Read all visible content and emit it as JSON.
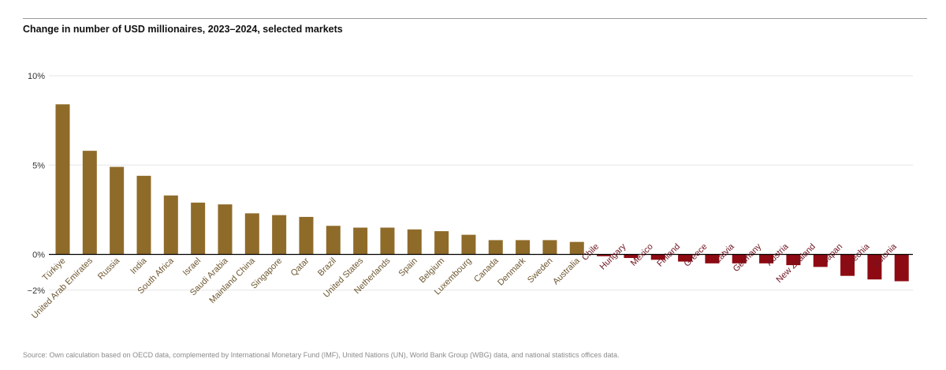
{
  "chart_data": {
    "type": "bar",
    "title": "Change in number of USD millionaires, 2023–2024, selected markets",
    "xlabel": "",
    "ylabel": "",
    "ylim": [
      -3,
      10.5
    ],
    "yticks": [
      {
        "value": 10,
        "label": "10%"
      },
      {
        "value": 5,
        "label": "5%"
      },
      {
        "value": 0,
        "label": "0%"
      },
      {
        "value": -2,
        "label": "−2%"
      }
    ],
    "grid": true,
    "legend": "none",
    "colors": {
      "positive": "#8f6b2a",
      "negative": "#8e0a12",
      "positive_label": "#6e5730",
      "negative_label": "#6e1420"
    },
    "categories": [
      "Türkiye",
      "United Arab Emirates",
      "Russia",
      "India",
      "South Africa",
      "Israel",
      "Saudi Arabia",
      "Mainland China",
      "Singapore",
      "Qatar",
      "Brazil",
      "United States",
      "Netherlands",
      "Spain",
      "Belgium",
      "Luxembourg",
      "Canada",
      "Denmark",
      "Sweden",
      "Australia",
      "Chile",
      "Hungary",
      "Mexico",
      "Finland",
      "Greece",
      "Latvia",
      "Germany",
      "Austria",
      "New Zealand",
      "Japan",
      "Czechia",
      "Estonia"
    ],
    "values": [
      8.4,
      5.8,
      4.9,
      4.4,
      3.3,
      2.9,
      2.8,
      2.3,
      2.2,
      2.1,
      1.6,
      1.5,
      1.5,
      1.4,
      1.3,
      1.1,
      0.8,
      0.8,
      0.8,
      0.7,
      -0.1,
      -0.2,
      -0.3,
      -0.4,
      -0.5,
      -0.5,
      -0.5,
      -0.6,
      -0.7,
      -1.2,
      -1.4,
      -1.5
    ]
  },
  "source": "Source: Own calculation based on OECD data, complemented by International Monetary Fund (IMF), United Nations (UN), World Bank Group (WBG) data, and national statistics offices data."
}
